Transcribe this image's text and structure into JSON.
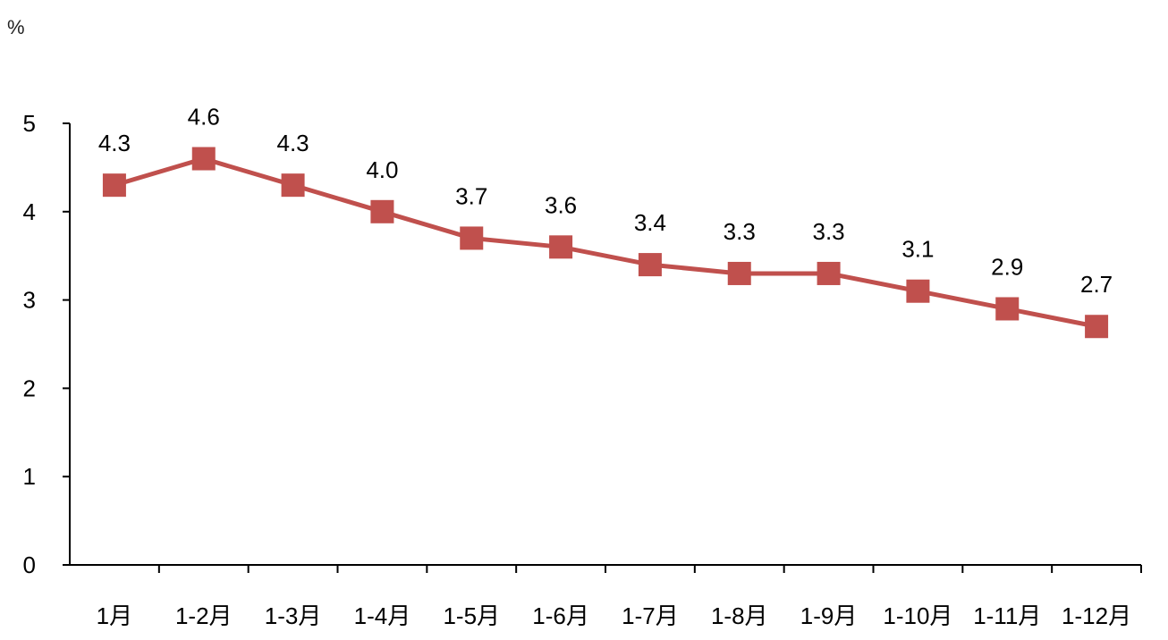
{
  "chart_data": {
    "type": "line",
    "unit_label": "%",
    "categories": [
      "1月",
      "1-2月",
      "1-3月",
      "1-4月",
      "1-5月",
      "1-6月",
      "1-7月",
      "1-8月",
      "1-9月",
      "1-10月",
      "1-11月",
      "1-12月"
    ],
    "series": [
      {
        "values": [
          4.3,
          4.6,
          4.3,
          4.0,
          3.7,
          3.6,
          3.4,
          3.3,
          3.3,
          3.1,
          2.9,
          2.7
        ],
        "value_labels": [
          "4.3",
          "4.6",
          "4.3",
          "4.0",
          "3.7",
          "3.6",
          "3.4",
          "3.3",
          "3.3",
          "3.1",
          "2.9",
          "2.7"
        ]
      }
    ],
    "ylim": [
      0,
      5
    ],
    "yticks": [
      "0",
      "1",
      "2",
      "3",
      "4",
      "5"
    ],
    "grid": false,
    "legend": false,
    "colors": {
      "line": "#C0504D",
      "axis": "#000000"
    }
  }
}
